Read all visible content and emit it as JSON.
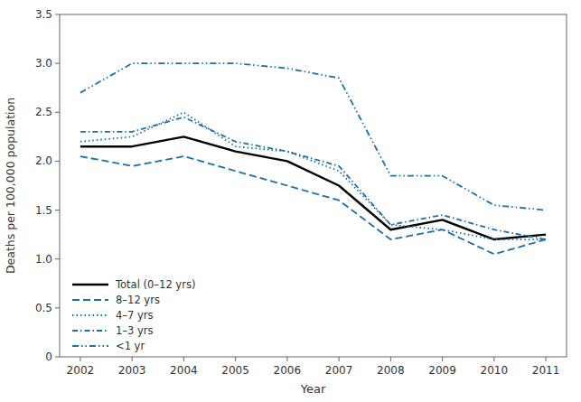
{
  "chart_data": {
    "type": "line",
    "x": [
      2002,
      2003,
      2004,
      2005,
      2006,
      2007,
      2008,
      2009,
      2010,
      2011
    ],
    "series": [
      {
        "name": "Total (0–12 yrs)",
        "color": "#000000",
        "line_style": "solid",
        "values": [
          2.15,
          2.15,
          2.25,
          2.1,
          2.0,
          1.75,
          1.3,
          1.4,
          1.2,
          1.25
        ]
      },
      {
        "name": "8–12 yrs",
        "color": "#1a6faf",
        "line_style": "dashed",
        "values": [
          2.05,
          1.95,
          2.05,
          1.9,
          1.75,
          1.6,
          1.2,
          1.3,
          1.05,
          1.2
        ]
      },
      {
        "name": "4–7 yrs",
        "color": "#1a6faf",
        "line_style": "dotted",
        "values": [
          2.2,
          2.25,
          2.5,
          2.15,
          2.1,
          1.9,
          1.35,
          1.3,
          1.2,
          1.2
        ]
      },
      {
        "name": "1–3 yrs",
        "color": "#1a6faf",
        "line_style": "dashdot",
        "values": [
          2.3,
          2.3,
          2.45,
          2.2,
          2.1,
          1.95,
          1.35,
          1.45,
          1.3,
          1.2
        ]
      },
      {
        "name": "<1 yr",
        "color": "#1a6faf",
        "line_style": "dashdotdot",
        "values": [
          2.7,
          3.0,
          3.0,
          3.0,
          2.95,
          2.85,
          1.85,
          1.85,
          1.55,
          1.5
        ]
      }
    ],
    "xlabel": "Year",
    "ylabel": "Deaths per 100,000 population",
    "xlim": [
      2001.6,
      2011.4
    ],
    "xticks": [
      2002,
      2003,
      2004,
      2005,
      2006,
      2007,
      2008,
      2009,
      2010,
      2011
    ],
    "ylim": [
      0,
      3.5
    ],
    "yticks": [
      0,
      0.5,
      {
        "value": 1.0,
        "label": "1.0"
      },
      1.5,
      {
        "value": 2.0,
        "label": "2.0"
      },
      2.5,
      {
        "value": 3.0,
        "label": "3.0"
      },
      3.5
    ],
    "grid": false,
    "legend": "lower left"
  }
}
